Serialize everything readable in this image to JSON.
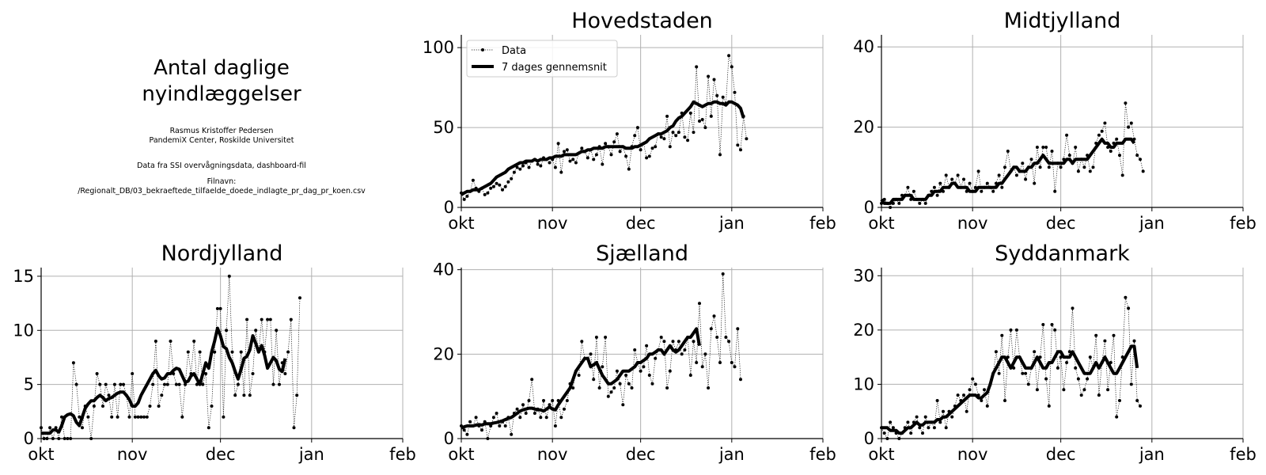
{
  "info": {
    "title_line1": "Antal daglige",
    "title_line2": "nyindlæggelser",
    "author": "Rasmus Kristoffer Pedersen",
    "affiliation": "PandemiX Center, Roskilde Universitet",
    "source": "Data fra SSI overvågningsdata, dashboard-fil",
    "filename_label": "Filnavn:",
    "filename": "/Regionalt_DB/03_bekraeftede_tilfaelde_doede_indlagte_pr_dag_pr_koen.csv"
  },
  "legend": {
    "data_label": "Data",
    "mean_label": "7 dages gennemsnit"
  },
  "colors": {
    "line": "#000000",
    "grid": "#b0b0b0"
  },
  "chart_data": [
    {
      "type": "line",
      "title": "Hovedstaden",
      "x_ticks": [
        "okt",
        "nov",
        "dec",
        "jan",
        "feb"
      ],
      "ylim": [
        0,
        108
      ],
      "y_ticks": [
        0,
        50,
        100
      ],
      "grid": true,
      "legend": "top-left",
      "series": [
        {
          "name": "Data",
          "style": "dotted-markers",
          "values": [
            9,
            5,
            7,
            10,
            17,
            12,
            10,
            12,
            8,
            9,
            12,
            13,
            15,
            14,
            11,
            13,
            16,
            18,
            22,
            25,
            24,
            26,
            28,
            25,
            29,
            30,
            27,
            26,
            31,
            30,
            28,
            30,
            25,
            40,
            22,
            35,
            36,
            29,
            30,
            28,
            34,
            37,
            35,
            31,
            36,
            30,
            33,
            38,
            27,
            40,
            38,
            33,
            41,
            46,
            35,
            38,
            32,
            24,
            38,
            45,
            50,
            36,
            40,
            31,
            32,
            37,
            38,
            46,
            44,
            43,
            57,
            38,
            47,
            45,
            47,
            59,
            44,
            42,
            59,
            47,
            88,
            54,
            55,
            50,
            82,
            57,
            80,
            70,
            33,
            69,
            65,
            95,
            88,
            72,
            39,
            36,
            57,
            43
          ]
        },
        {
          "name": "7 dages gennemsnit",
          "style": "thick",
          "values": [
            8,
            9,
            10,
            10,
            11,
            11,
            11,
            12,
            13,
            14,
            15,
            17,
            19,
            20,
            21,
            22,
            24,
            25,
            26,
            27,
            28,
            28,
            29,
            29,
            29,
            30,
            29,
            30,
            30,
            30,
            31,
            31,
            32,
            32,
            32,
            33,
            33,
            33,
            33,
            33,
            34,
            35,
            35,
            36,
            36,
            37,
            37,
            37,
            37,
            38,
            38,
            38,
            38,
            38,
            38,
            38,
            37,
            37,
            37,
            38,
            38,
            39,
            40,
            41,
            43,
            44,
            45,
            46,
            46,
            47,
            48,
            50,
            51,
            54,
            56,
            57,
            59,
            61,
            63,
            66,
            65,
            64,
            63,
            64,
            65,
            65,
            66,
            66,
            65,
            65,
            64,
            66,
            66,
            65,
            64,
            62,
            56
          ]
        }
      ]
    },
    {
      "type": "line",
      "title": "Midtjylland",
      "x_ticks": [
        "okt",
        "nov",
        "dec",
        "jan",
        "feb"
      ],
      "ylim": [
        0,
        43
      ],
      "y_ticks": [
        0,
        20,
        40
      ],
      "grid": true,
      "series": [
        {
          "name": "Data",
          "style": "dotted-markers",
          "values": [
            1,
            2,
            1,
            0,
            1,
            2,
            1,
            3,
            3,
            5,
            2,
            4,
            2,
            1,
            2,
            1,
            3,
            4,
            5,
            3,
            6,
            4,
            8,
            5,
            7,
            6,
            8,
            5,
            7,
            4,
            6,
            4,
            5,
            9,
            4,
            5,
            6,
            5,
            4,
            6,
            8,
            5,
            10,
            14,
            9,
            10,
            8,
            9,
            11,
            7,
            10,
            12,
            6,
            15,
            10,
            15,
            15,
            10,
            14,
            4,
            11,
            10,
            12,
            18,
            13,
            11,
            15,
            9,
            12,
            10,
            13,
            9,
            10,
            16,
            18,
            19,
            21,
            15,
            14,
            16,
            17,
            13,
            8,
            26,
            20,
            21,
            17,
            13,
            12,
            9
          ]
        },
        {
          "name": "7 dages gennemsnit",
          "style": "thick",
          "values": [
            2,
            1,
            1,
            1,
            2,
            2,
            2,
            2,
            3,
            3,
            3,
            2,
            2,
            2,
            2,
            2,
            3,
            3,
            4,
            4,
            4,
            5,
            5,
            5,
            6,
            6,
            5,
            5,
            5,
            5,
            4,
            4,
            4,
            5,
            5,
            5,
            5,
            5,
            5,
            5,
            6,
            6,
            7,
            8,
            9,
            10,
            10,
            9,
            9,
            9,
            10,
            10,
            11,
            11,
            12,
            13,
            12,
            11,
            11,
            11,
            11,
            11,
            11,
            12,
            12,
            11,
            12,
            12,
            12,
            12,
            12,
            13,
            14,
            15,
            16,
            17,
            16,
            16,
            15,
            15,
            16,
            16,
            16,
            17,
            17,
            17,
            16
          ]
        }
      ]
    },
    {
      "type": "line",
      "title": "Nordjylland",
      "x_ticks": [
        "okt",
        "nov",
        "dec",
        "jan",
        "feb"
      ],
      "ylim": [
        0,
        15.8
      ],
      "y_ticks": [
        0,
        5,
        10,
        15
      ],
      "grid": true,
      "series": [
        {
          "name": "Data",
          "style": "dotted-markers",
          "values": [
            1,
            0,
            0,
            1,
            0,
            1,
            0,
            2,
            0,
            0,
            0,
            7,
            5,
            2,
            1,
            3,
            2,
            0,
            3,
            6,
            5,
            3,
            5,
            4,
            2,
            5,
            2,
            5,
            5,
            4,
            2,
            6,
            2,
            2,
            2,
            2,
            2,
            3,
            5,
            9,
            3,
            4,
            5,
            5,
            9,
            6,
            5,
            5,
            2,
            5,
            8,
            6,
            9,
            5,
            8,
            5,
            6,
            1,
            3,
            8,
            12,
            12,
            2,
            10,
            15,
            8,
            4,
            5,
            8,
            4,
            11,
            4,
            6,
            10,
            8,
            11,
            8,
            11,
            11,
            5,
            10,
            5,
            7,
            6,
            8,
            11,
            1,
            4,
            13
          ]
        },
        {
          "name": "7 dages gennemsnit",
          "style": "thick",
          "values": [
            0.5,
            0.5,
            0.5,
            0.5,
            0.8,
            0.8,
            0.6,
            1.2,
            2,
            2.2,
            2.3,
            2.1,
            1.5,
            1.2,
            2,
            2.8,
            3.2,
            3.5,
            3.5,
            3.8,
            4,
            3.8,
            3.5,
            3.7,
            3.8,
            4,
            4.2,
            4.3,
            4.3,
            4,
            3.6,
            3,
            3,
            3.3,
            4,
            4.5,
            5,
            5.5,
            6,
            6.3,
            5.8,
            5.5,
            5.6,
            6,
            6,
            6.3,
            6.5,
            6.4,
            5.8,
            5.2,
            5.3,
            5.8,
            6,
            5.5,
            5,
            6,
            7,
            6.5,
            8,
            9,
            10.2,
            9.5,
            8.5,
            8.3,
            7.5,
            7,
            6.2,
            5.5,
            6.4,
            7.4,
            7.6,
            8.2,
            9.5,
            8.8,
            8,
            8.6,
            7.7,
            6.5,
            7,
            7.5,
            7.2,
            6.4,
            6.2,
            7.4
          ]
        }
      ]
    },
    {
      "type": "line",
      "title": "Sjælland",
      "x_ticks": [
        "okt",
        "nov",
        "dec",
        "jan",
        "feb"
      ],
      "ylim": [
        0,
        40.5
      ],
      "y_ticks": [
        0,
        20,
        40
      ],
      "grid": true,
      "series": [
        {
          "name": "Data",
          "style": "dotted-markers",
          "values": [
            3,
            2,
            1,
            4,
            3,
            5,
            3,
            2,
            4,
            0,
            3,
            5,
            6,
            3,
            4,
            3,
            5,
            1,
            6,
            7,
            5,
            8,
            6,
            9,
            14,
            6,
            7,
            5,
            9,
            5,
            8,
            9,
            3,
            9,
            5,
            7,
            9,
            13,
            12,
            16,
            15,
            23,
            19,
            19,
            20,
            14,
            24,
            12,
            17,
            24,
            10,
            11,
            12,
            16,
            13,
            8,
            15,
            13,
            12,
            21,
            18,
            16,
            17,
            22,
            15,
            13,
            19,
            21,
            24,
            23,
            12,
            16,
            23,
            21,
            23,
            20,
            21,
            24,
            15,
            23,
            18,
            32,
            17,
            20,
            12,
            26,
            29,
            24,
            18,
            39,
            24,
            23,
            18,
            17,
            26,
            14
          ]
        },
        {
          "name": "7 dages gennemsnit",
          "style": "thick",
          "values": [
            2.5,
            2.8,
            3,
            3,
            3,
            3.2,
            3.3,
            3.2,
            3.5,
            3.5,
            3.5,
            3.7,
            3.8,
            4,
            4.2,
            4.5,
            4.8,
            5,
            5.5,
            6,
            6.5,
            6.8,
            7,
            7.2,
            7.2,
            7,
            6.8,
            6.8,
            6.5,
            7,
            7.5,
            7,
            6.8,
            8,
            9,
            10,
            11,
            12,
            14,
            16,
            17,
            18,
            19,
            19,
            17,
            17.5,
            18,
            16.5,
            15,
            14,
            13,
            13,
            13.5,
            14,
            15,
            16,
            16,
            16,
            16.5,
            17,
            18,
            18,
            18.5,
            19,
            20,
            20,
            20.5,
            21,
            21,
            20,
            21,
            22,
            21,
            20.5,
            21,
            22,
            23,
            24,
            24,
            25,
            26,
            22
          ]
        }
      ]
    },
    {
      "type": "line",
      "title": "Syddanmark",
      "x_ticks": [
        "okt",
        "nov",
        "dec",
        "jan",
        "feb"
      ],
      "ylim": [
        0,
        31.5
      ],
      "y_ticks": [
        0,
        10,
        20,
        30
      ],
      "grid": true,
      "series": [
        {
          "name": "Data",
          "style": "dotted-markers",
          "values": [
            2,
            1,
            0,
            3,
            2,
            1,
            0,
            1,
            2,
            3,
            1,
            3,
            4,
            2,
            1,
            4,
            2,
            3,
            2,
            7,
            3,
            5,
            2,
            5,
            4,
            6,
            8,
            7,
            8,
            5,
            9,
            11,
            10,
            8,
            7,
            9,
            6,
            10,
            12,
            16,
            12,
            19,
            7,
            15,
            20,
            13,
            20,
            15,
            12,
            12,
            10,
            13,
            16,
            9,
            15,
            21,
            11,
            6,
            21,
            20,
            13,
            15,
            9,
            14,
            16,
            24,
            13,
            11,
            8,
            9,
            11,
            15,
            13,
            19,
            8,
            14,
            18,
            9,
            14,
            19,
            4,
            7,
            15,
            26,
            24,
            10,
            18,
            7,
            6
          ]
        },
        {
          "name": "7 dages gennemsnit",
          "style": "thick",
          "values": [
            2,
            2,
            2,
            1.5,
            1.5,
            1.5,
            1,
            1,
            1.5,
            2,
            2,
            2.5,
            3,
            2.5,
            2.5,
            3,
            3,
            3,
            3,
            3.5,
            3.5,
            4,
            4,
            4.5,
            5,
            5.5,
            6,
            6.5,
            7,
            7.5,
            8,
            8,
            8,
            7.5,
            7.5,
            8,
            8.5,
            10,
            12,
            13,
            14,
            15,
            15,
            14,
            13,
            14,
            15,
            15,
            14,
            13,
            13,
            13,
            14,
            15,
            14,
            13,
            13,
            14,
            14,
            15,
            16,
            16,
            15,
            15,
            15,
            16,
            15,
            14,
            13,
            12,
            12,
            12,
            13,
            14,
            13,
            14,
            15,
            14,
            13,
            12,
            12,
            13,
            14,
            15,
            16,
            17,
            17,
            13
          ]
        }
      ]
    }
  ]
}
